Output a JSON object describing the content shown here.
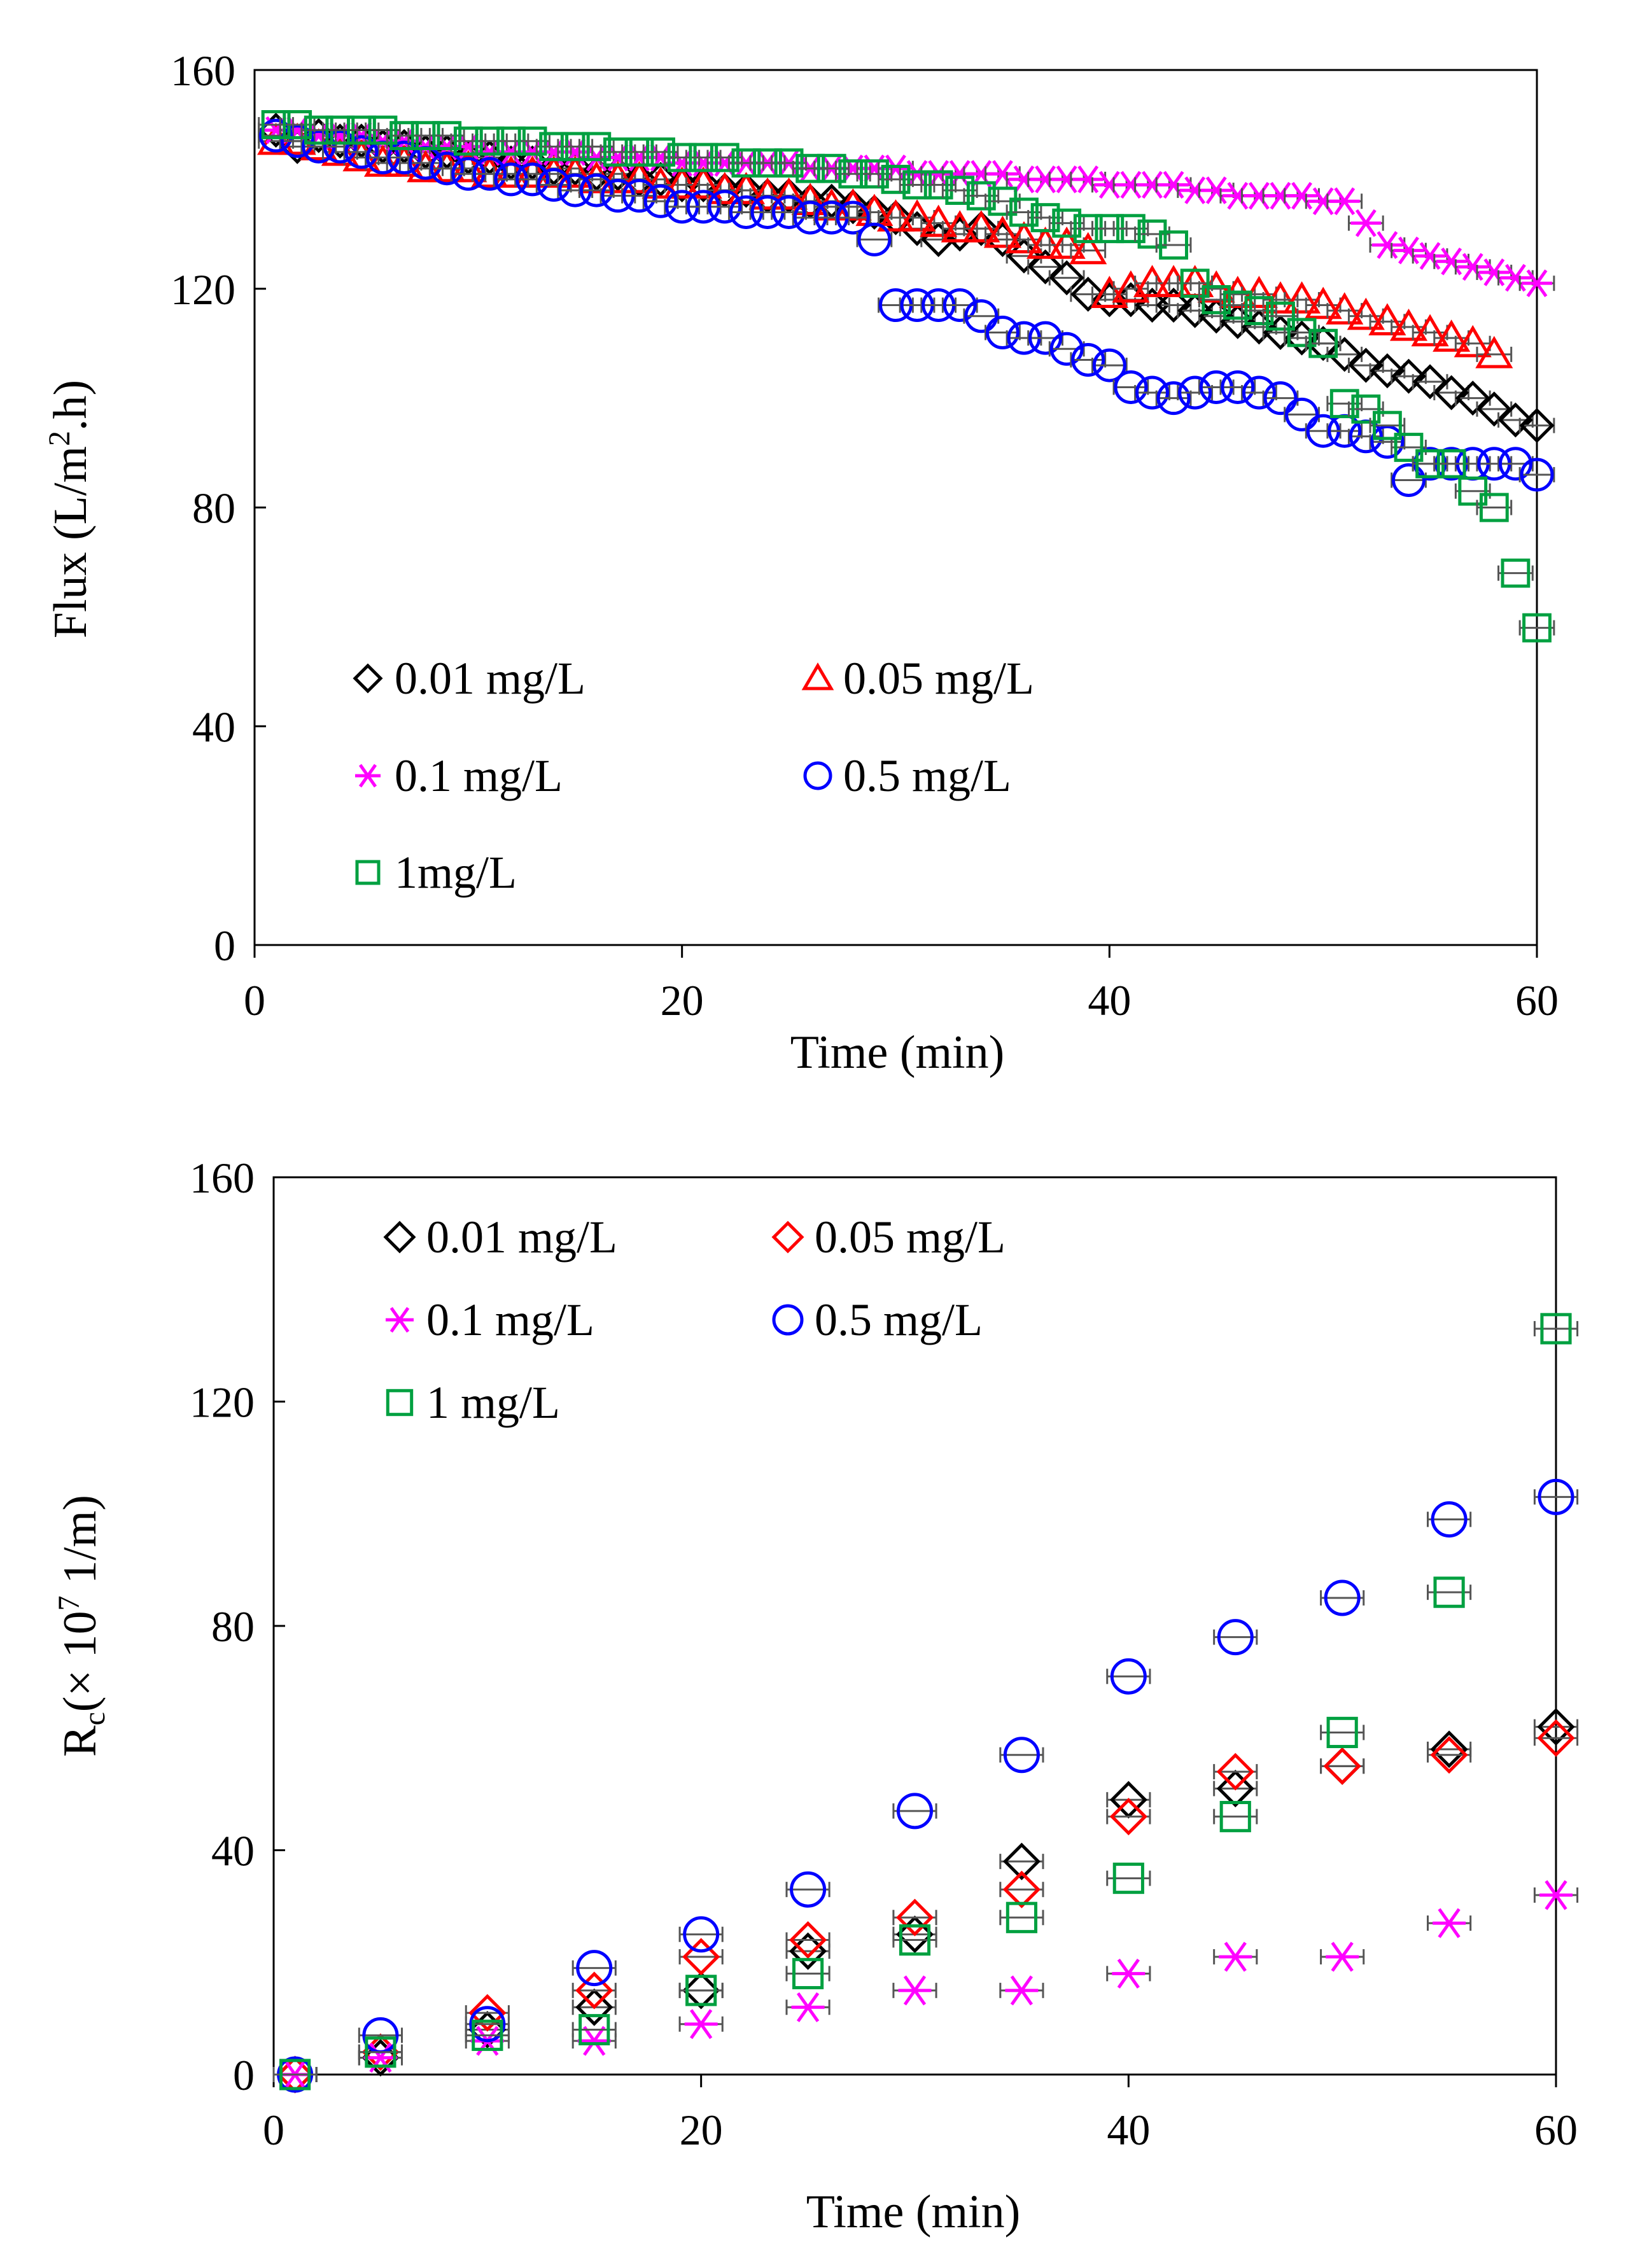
{
  "chart_data": [
    {
      "type": "scatter",
      "id": "top",
      "xlabel": "Time (min)",
      "ylabel": "Flux (L/m",
      "ylabel_sup": "2",
      "ylabel_tail": ".h)",
      "xlim": [
        0,
        60
      ],
      "ylim": [
        0,
        160
      ],
      "xticks": [
        0,
        20,
        40,
        60
      ],
      "yticks": [
        0,
        40,
        80,
        120,
        160
      ],
      "legend_placement": "lower-left",
      "series": [
        {
          "name": "0.01 mg/L",
          "marker": "diamond",
          "color": "#000000",
          "x": [
            1,
            2,
            3,
            4,
            5,
            6,
            7,
            8,
            9,
            10,
            11,
            12,
            13,
            14,
            15,
            16,
            17,
            18,
            19,
            20,
            21,
            22,
            23,
            24,
            25,
            26,
            27,
            28,
            29,
            30,
            31,
            32,
            33,
            34,
            35,
            36,
            37,
            38,
            39,
            40,
            41,
            42,
            43,
            44,
            45,
            46,
            47,
            48,
            49,
            50,
            51,
            52,
            53,
            54,
            55,
            56,
            57,
            58,
            59,
            60
          ],
          "y": [
            149,
            146,
            148,
            147,
            147,
            146,
            146,
            145,
            145,
            144,
            144,
            143,
            143,
            142,
            142,
            141,
            141,
            140,
            140,
            139,
            139,
            138,
            138,
            137,
            137,
            136,
            136,
            135,
            134,
            133,
            131,
            129,
            130,
            131,
            129,
            126,
            124,
            122,
            119,
            118,
            118,
            117,
            117,
            116,
            115,
            114,
            113,
            112,
            111,
            110,
            108,
            106,
            105,
            104,
            103,
            101,
            100,
            98,
            96,
            95
          ],
          "xerr": 0.8
        },
        {
          "name": "0.05 mg/L",
          "marker": "triangle",
          "color": "#ff0000",
          "x": [
            1,
            2,
            3,
            4,
            5,
            6,
            7,
            8,
            9,
            10,
            11,
            12,
            13,
            14,
            15,
            16,
            17,
            18,
            19,
            20,
            21,
            22,
            23,
            24,
            25,
            26,
            27,
            28,
            29,
            30,
            31,
            32,
            33,
            34,
            35,
            36,
            37,
            38,
            39,
            40,
            41,
            42,
            43,
            44,
            45,
            46,
            47,
            48,
            49,
            50,
            51,
            52,
            53,
            54,
            55,
            56,
            57,
            58
          ],
          "y": [
            147,
            147,
            146,
            145,
            144,
            143,
            143,
            142,
            142,
            142,
            141,
            141,
            141,
            141,
            141,
            140,
            140,
            140,
            139,
            139,
            139,
            138,
            138,
            137,
            137,
            136,
            135,
            135,
            134,
            133,
            133,
            132,
            131,
            131,
            130,
            129,
            128,
            128,
            127,
            119,
            120,
            121,
            121,
            121,
            120,
            119,
            119,
            118,
            118,
            117,
            116,
            115,
            114,
            113,
            112,
            111,
            110,
            108
          ],
          "xerr": 0.8
        },
        {
          "name": "0.1 mg/L",
          "marker": "asterisk",
          "color": "#ff00ff",
          "x": [
            1,
            2,
            3,
            4,
            5,
            6,
            7,
            8,
            9,
            10,
            11,
            12,
            13,
            14,
            15,
            16,
            17,
            18,
            19,
            20,
            21,
            22,
            23,
            24,
            25,
            26,
            27,
            28,
            29,
            30,
            31,
            32,
            33,
            34,
            35,
            36,
            37,
            38,
            39,
            40,
            41,
            42,
            43,
            44,
            45,
            46,
            47,
            48,
            49,
            50,
            51,
            52,
            53,
            54,
            55,
            56,
            57,
            58,
            59,
            60
          ],
          "y": [
            149,
            149,
            148,
            148,
            148,
            147,
            147,
            146,
            146,
            146,
            145,
            145,
            145,
            145,
            145,
            144,
            144,
            144,
            144,
            143,
            143,
            143,
            143,
            143,
            143,
            142,
            142,
            142,
            142,
            142,
            141,
            141,
            141,
            141,
            141,
            140,
            140,
            140,
            140,
            139,
            139,
            139,
            139,
            138,
            138,
            137,
            137,
            137,
            137,
            136,
            136,
            132,
            128,
            127,
            126,
            125,
            124,
            123,
            122,
            121
          ],
          "xerr": 0.8
        },
        {
          "name": "0.5 mg/L",
          "marker": "circle",
          "color": "#0000ff",
          "x": [
            1,
            2,
            3,
            4,
            5,
            6,
            7,
            8,
            9,
            10,
            11,
            12,
            13,
            14,
            15,
            16,
            17,
            18,
            19,
            20,
            21,
            22,
            23,
            24,
            25,
            26,
            27,
            28,
            29,
            30,
            31,
            32,
            33,
            34,
            35,
            36,
            37,
            38,
            39,
            40,
            41,
            42,
            43,
            44,
            45,
            46,
            47,
            48,
            49,
            50,
            51,
            52,
            53,
            54,
            55,
            56,
            57,
            58,
            59,
            60
          ],
          "y": [
            148,
            147,
            146,
            146,
            145,
            144,
            144,
            143,
            142,
            141,
            141,
            140,
            140,
            139,
            138,
            138,
            137,
            137,
            136,
            135,
            135,
            135,
            134,
            134,
            134,
            133,
            133,
            133,
            129,
            117,
            117,
            117,
            117,
            115,
            112,
            111,
            111,
            109,
            107,
            106,
            102,
            101,
            100,
            101,
            102,
            102,
            101,
            100,
            97,
            94,
            94,
            93,
            92,
            85,
            88,
            88,
            88,
            88,
            88,
            86
          ],
          "xerr": 0.8
        },
        {
          "name": "1mg/L",
          "marker": "square",
          "color": "#00a040",
          "x": [
            1,
            2,
            3,
            4,
            5,
            6,
            7,
            8,
            9,
            10,
            11,
            12,
            13,
            14,
            15,
            16,
            17,
            18,
            19,
            20,
            21,
            22,
            23,
            24,
            25,
            26,
            27,
            28,
            29,
            30,
            31,
            32,
            33,
            34,
            35,
            36,
            37,
            38,
            39,
            40,
            41,
            42,
            43,
            44,
            45,
            46,
            47,
            48,
            49,
            50,
            51,
            52,
            53,
            54,
            55,
            56,
            57,
            58,
            59,
            60
          ],
          "y": [
            150,
            150,
            149,
            149,
            149,
            149,
            148,
            148,
            148,
            147,
            147,
            147,
            147,
            146,
            146,
            146,
            145,
            145,
            145,
            144,
            144,
            144,
            143,
            143,
            143,
            142,
            142,
            141,
            141,
            140,
            139,
            139,
            138,
            137,
            136,
            134,
            133,
            132,
            131,
            131,
            131,
            130,
            128,
            121,
            118,
            117,
            116,
            115,
            112,
            110,
            99,
            98,
            95,
            91,
            88,
            88,
            83,
            80,
            68,
            58
          ],
          "xerr": 0.8
        }
      ]
    },
    {
      "type": "scatter",
      "id": "bottom",
      "xlabel": "Time (min)",
      "ylabel_main": "R",
      "ylabel_sub": "c",
      "ylabel_mid": "(× 10",
      "ylabel_sup": "7",
      "ylabel_tail": " 1/m)",
      "xlim": [
        0,
        60
      ],
      "ylim": [
        0,
        160
      ],
      "xticks": [
        0,
        20,
        40,
        60
      ],
      "yticks": [
        0,
        40,
        80,
        120,
        160
      ],
      "legend_placement": "top-left",
      "series": [
        {
          "name": "0.01 mg/L",
          "marker": "diamond",
          "color": "#000000",
          "x": [
            1,
            5,
            10,
            15,
            20,
            25,
            30,
            35,
            40,
            45,
            50,
            55,
            60
          ],
          "y": [
            0,
            3,
            8,
            12,
            15,
            22,
            25,
            38,
            49,
            51,
            55,
            58,
            62
          ],
          "xerr": 1.0
        },
        {
          "name": "0.05 mg/L",
          "marker": "diamond",
          "color": "#ff0000",
          "x": [
            1,
            5,
            10,
            15,
            20,
            25,
            30,
            35,
            40,
            45,
            50,
            55,
            60
          ],
          "y": [
            0,
            4,
            11,
            15,
            21,
            24,
            28,
            33,
            46,
            54,
            55,
            57,
            60
          ],
          "xerr": 1.0
        },
        {
          "name": "0.1 mg/L",
          "marker": "asterisk",
          "color": "#ff00ff",
          "x": [
            1,
            5,
            10,
            15,
            20,
            25,
            30,
            35,
            40,
            45,
            50,
            55,
            60
          ],
          "y": [
            0,
            3,
            6,
            6,
            9,
            12,
            15,
            15,
            18,
            21,
            21,
            27,
            32
          ],
          "xerr": 1.0
        },
        {
          "name": "0.5 mg/L",
          "marker": "circle",
          "color": "#0000ff",
          "x": [
            1,
            5,
            10,
            15,
            20,
            25,
            30,
            35,
            40,
            45,
            50,
            55,
            60
          ],
          "y": [
            0,
            7,
            9,
            19,
            25,
            33,
            47,
            57,
            71,
            78,
            85,
            99,
            103
          ],
          "xerr": 1.0
        },
        {
          "name": "1 mg/L",
          "marker": "square",
          "color": "#00a040",
          "x": [
            1,
            5,
            10,
            15,
            20,
            25,
            30,
            35,
            40,
            45,
            50,
            55,
            60
          ],
          "y": [
            0,
            4,
            7,
            8,
            15,
            18,
            24,
            28,
            35,
            46,
            61,
            86,
            133
          ],
          "xerr": 1.0
        }
      ]
    }
  ]
}
